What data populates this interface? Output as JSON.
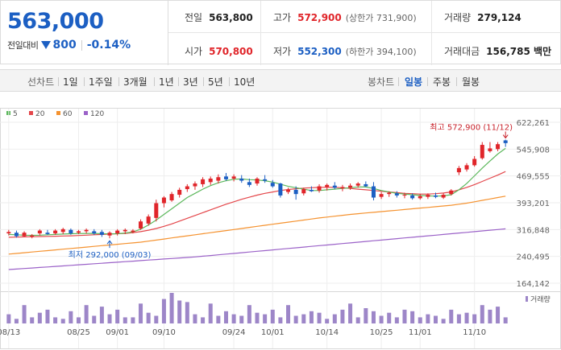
{
  "header": {
    "current_price": "563,000",
    "change_label": "전일대비",
    "change_value": "800",
    "change_direction": "down",
    "change_pct": "-0.14%",
    "quotes": {
      "prev_close": {
        "label": "전일",
        "value": "563,800"
      },
      "high": {
        "label": "고가",
        "value": "572,900",
        "sub": "(상한가 731,900)"
      },
      "volume": {
        "label": "거래량",
        "value": "279,124"
      },
      "open": {
        "label": "시가",
        "value": "570,800"
      },
      "low": {
        "label": "저가",
        "value": "552,300",
        "sub": "(하한가 394,100)"
      },
      "amount": {
        "label": "거래대금",
        "value": "156,785 백만"
      }
    }
  },
  "toolbar": {
    "line_chart_label": "선차트",
    "periods": [
      "1일",
      "1주일",
      "3개월",
      "1년",
      "3년",
      "5년",
      "10년"
    ],
    "candle_chart_label": "봉차트",
    "candle_periods": [
      "일봉",
      "주봉",
      "월봉"
    ],
    "candle_active": "일봉"
  },
  "colors": {
    "up": "#e0252a",
    "down": "#1c5fc3",
    "ma5": "#5cb85c",
    "ma20": "#e4474b",
    "ma60": "#f5922f",
    "ma120": "#9b62c8",
    "volume": "#9d86c8"
  },
  "chart_data": {
    "type": "candlestick",
    "legend": [
      {
        "name": "5",
        "color": "#5cb85c"
      },
      {
        "name": "20",
        "color": "#e4474b"
      },
      {
        "name": "60",
        "color": "#f5922f"
      },
      {
        "name": "120",
        "color": "#9b62c8"
      }
    ],
    "y_ticks": [
      622261,
      545908,
      469555,
      393201,
      316848,
      240495,
      164142
    ],
    "ylim": [
      164142,
      622261
    ],
    "x_tick_labels": [
      "08/13",
      "08/25",
      "09/01",
      "09/10",
      "09/24",
      "10/01",
      "10/14",
      "10/25",
      "11/01",
      "11/10"
    ],
    "annotation_high": {
      "label": "최고 572,900 (11/12)",
      "value": 572900
    },
    "annotation_low": {
      "label": "최저 292,000 (09/03)",
      "value": 292000
    },
    "volume_label": "거래량",
    "candles": [
      {
        "o": 306000,
        "h": 316000,
        "l": 300000,
        "c": 310000
      },
      {
        "o": 308000,
        "h": 314000,
        "l": 294000,
        "c": 298000
      },
      {
        "o": 298000,
        "h": 312000,
        "l": 296000,
        "c": 308000
      },
      {
        "o": 296000,
        "h": 304000,
        "l": 292000,
        "c": 300000
      },
      {
        "o": 306000,
        "h": 318000,
        "l": 300000,
        "c": 314000
      },
      {
        "o": 308000,
        "h": 316000,
        "l": 302000,
        "c": 304000
      },
      {
        "o": 306000,
        "h": 318000,
        "l": 302000,
        "c": 314000
      },
      {
        "o": 310000,
        "h": 322000,
        "l": 304000,
        "c": 318000
      },
      {
        "o": 316000,
        "h": 320000,
        "l": 302000,
        "c": 306000
      },
      {
        "o": 308000,
        "h": 316000,
        "l": 304000,
        "c": 312000
      },
      {
        "o": 312000,
        "h": 320000,
        "l": 306000,
        "c": 316000
      },
      {
        "o": 312000,
        "h": 318000,
        "l": 302000,
        "c": 306000
      },
      {
        "o": 310000,
        "h": 316000,
        "l": 296000,
        "c": 302000
      },
      {
        "o": 300000,
        "h": 312000,
        "l": 292000,
        "c": 308000
      },
      {
        "o": 306000,
        "h": 318000,
        "l": 300000,
        "c": 314000
      },
      {
        "o": 312000,
        "h": 320000,
        "l": 304000,
        "c": 316000
      },
      {
        "o": 310000,
        "h": 318000,
        "l": 306000,
        "c": 314000
      },
      {
        "o": 320000,
        "h": 346000,
        "l": 316000,
        "c": 340000
      },
      {
        "o": 334000,
        "h": 360000,
        "l": 328000,
        "c": 354000
      },
      {
        "o": 350000,
        "h": 402000,
        "l": 340000,
        "c": 392000
      },
      {
        "o": 392000,
        "h": 412000,
        "l": 380000,
        "c": 408000
      },
      {
        "o": 400000,
        "h": 424000,
        "l": 396000,
        "c": 418000
      },
      {
        "o": 416000,
        "h": 436000,
        "l": 408000,
        "c": 430000
      },
      {
        "o": 432000,
        "h": 446000,
        "l": 424000,
        "c": 440000
      },
      {
        "o": 440000,
        "h": 454000,
        "l": 430000,
        "c": 448000
      },
      {
        "o": 446000,
        "h": 466000,
        "l": 438000,
        "c": 460000
      },
      {
        "o": 452000,
        "h": 468000,
        "l": 444000,
        "c": 462000
      },
      {
        "o": 456000,
        "h": 474000,
        "l": 448000,
        "c": 466000
      },
      {
        "o": 468000,
        "h": 478000,
        "l": 456000,
        "c": 460000
      },
      {
        "o": 462000,
        "h": 474000,
        "l": 454000,
        "c": 468000
      },
      {
        "o": 462000,
        "h": 472000,
        "l": 450000,
        "c": 456000
      },
      {
        "o": 452000,
        "h": 462000,
        "l": 438000,
        "c": 444000
      },
      {
        "o": 448000,
        "h": 466000,
        "l": 442000,
        "c": 462000
      },
      {
        "o": 460000,
        "h": 472000,
        "l": 450000,
        "c": 456000
      },
      {
        "o": 450000,
        "h": 458000,
        "l": 436000,
        "c": 440000
      },
      {
        "o": 448000,
        "h": 450000,
        "l": 408000,
        "c": 414000
      },
      {
        "o": 424000,
        "h": 436000,
        "l": 418000,
        "c": 430000
      },
      {
        "o": 430000,
        "h": 440000,
        "l": 402000,
        "c": 418000
      },
      {
        "o": 420000,
        "h": 436000,
        "l": 414000,
        "c": 432000
      },
      {
        "o": 430000,
        "h": 440000,
        "l": 424000,
        "c": 426000
      },
      {
        "o": 428000,
        "h": 446000,
        "l": 422000,
        "c": 440000
      },
      {
        "o": 438000,
        "h": 448000,
        "l": 428000,
        "c": 444000
      },
      {
        "o": 442000,
        "h": 452000,
        "l": 432000,
        "c": 436000
      },
      {
        "o": 434000,
        "h": 444000,
        "l": 426000,
        "c": 438000
      },
      {
        "o": 436000,
        "h": 448000,
        "l": 430000,
        "c": 442000
      },
      {
        "o": 442000,
        "h": 452000,
        "l": 436000,
        "c": 448000
      },
      {
        "o": 446000,
        "h": 454000,
        "l": 438000,
        "c": 440000
      },
      {
        "o": 440000,
        "h": 452000,
        "l": 400000,
        "c": 408000
      },
      {
        "o": 410000,
        "h": 424000,
        "l": 404000,
        "c": 418000
      },
      {
        "o": 418000,
        "h": 426000,
        "l": 410000,
        "c": 422000
      },
      {
        "o": 420000,
        "h": 426000,
        "l": 408000,
        "c": 414000
      },
      {
        "o": 414000,
        "h": 422000,
        "l": 406000,
        "c": 416000
      },
      {
        "o": 414000,
        "h": 420000,
        "l": 402000,
        "c": 406000
      },
      {
        "o": 406000,
        "h": 418000,
        "l": 402000,
        "c": 412000
      },
      {
        "o": 410000,
        "h": 420000,
        "l": 404000,
        "c": 416000
      },
      {
        "o": 414000,
        "h": 422000,
        "l": 406000,
        "c": 410000
      },
      {
        "o": 408000,
        "h": 420000,
        "l": 404000,
        "c": 416000
      },
      {
        "o": 418000,
        "h": 432000,
        "l": 414000,
        "c": 428000
      },
      {
        "o": 480000,
        "h": 498000,
        "l": 472000,
        "c": 492000
      },
      {
        "o": 488000,
        "h": 506000,
        "l": 482000,
        "c": 500000
      },
      {
        "o": 500000,
        "h": 526000,
        "l": 496000,
        "c": 518000
      },
      {
        "o": 520000,
        "h": 566000,
        "l": 516000,
        "c": 558000
      },
      {
        "o": 540000,
        "h": 566000,
        "l": 536000,
        "c": 548000
      },
      {
        "o": 546000,
        "h": 566000,
        "l": 540000,
        "c": 560000
      },
      {
        "o": 570800,
        "h": 572900,
        "l": 552300,
        "c": 563000
      }
    ],
    "volumes": [
      30,
      15,
      60,
      20,
      35,
      45,
      20,
      15,
      40,
      20,
      60,
      25,
      55,
      30,
      45,
      20,
      20,
      65,
      35,
      25,
      80,
      100,
      75,
      70,
      30,
      20,
      65,
      25,
      40,
      30,
      25,
      60,
      35,
      30,
      45,
      20,
      60,
      25,
      30,
      40,
      35,
      15,
      30,
      45,
      65,
      20,
      50,
      40,
      25,
      35,
      20,
      45,
      40,
      20,
      30,
      25,
      15,
      45,
      30,
      35,
      30,
      60,
      45,
      55,
      20
    ],
    "ma5": [
      303000,
      302000,
      301000,
      300500,
      301000,
      302000,
      303000,
      304000,
      305000,
      305500,
      306000,
      306000,
      305000,
      304500,
      305000,
      307000,
      310000,
      318000,
      330000,
      344000,
      360000,
      376000,
      392000,
      408000,
      420000,
      432000,
      442000,
      450000,
      456000,
      460000,
      461000,
      459000,
      458000,
      456000,
      452000,
      446000,
      440000,
      436000,
      432000,
      428000,
      428000,
      430000,
      432000,
      434000,
      436000,
      438000,
      438000,
      434000,
      428000,
      424000,
      420000,
      418000,
      416000,
      414000,
      413000,
      412000,
      413000,
      416000,
      430000,
      448000,
      470000,
      492000,
      512000,
      532000,
      548000
    ],
    "ma20": [
      295000,
      295500,
      296000,
      296500,
      297000,
      297500,
      298000,
      298500,
      299000,
      300000,
      301000,
      302000,
      303000,
      304000,
      305000,
      306000,
      308000,
      311000,
      315000,
      320000,
      326000,
      333000,
      341000,
      349000,
      357000,
      365000,
      373000,
      381000,
      389000,
      396000,
      403000,
      409000,
      415000,
      420000,
      424000,
      428000,
      431000,
      433000,
      435000,
      436000,
      437000,
      437500,
      437000,
      436000,
      434000,
      432000,
      430000,
      428000,
      426000,
      424000,
      422000,
      420000,
      419000,
      418000,
      418000,
      419000,
      421000,
      424000,
      430000,
      437000,
      445000,
      454000,
      463000,
      472000,
      482000
    ],
    "ma60": [
      247000,
      249000,
      251000,
      253000,
      255000,
      257000,
      259000,
      261000,
      263000,
      265000,
      267000,
      269000,
      271000,
      273000,
      275000,
      277000,
      279000,
      281000,
      284000,
      287000,
      290000,
      293000,
      296000,
      299000,
      302000,
      305000,
      308000,
      311000,
      314000,
      317000,
      320000,
      323000,
      326000,
      329000,
      332000,
      335000,
      338000,
      341000,
      344000,
      347000,
      350000,
      352500,
      355000,
      357500,
      360000,
      362000,
      364000,
      366000,
      368000,
      370000,
      372000,
      374000,
      376000,
      378000,
      380000,
      382000,
      384000,
      386000,
      389000,
      392000,
      396000,
      400000,
      404000,
      408000,
      412000
    ],
    "ma120": [
      203000,
      204500,
      206000,
      207500,
      209000,
      210500,
      212000,
      213500,
      215000,
      216500,
      218000,
      219500,
      221000,
      222500,
      224000,
      225500,
      227000,
      228500,
      230000,
      231500,
      233000,
      234500,
      236000,
      237500,
      239000,
      241000,
      243000,
      245000,
      247000,
      249000,
      251000,
      253000,
      255000,
      257000,
      259000,
      261000,
      263000,
      265000,
      267000,
      269000,
      271000,
      273000,
      275000,
      277000,
      279000,
      281000,
      283000,
      285000,
      287000,
      289000,
      291000,
      293000,
      295000,
      297000,
      299000,
      301000,
      303000,
      305000,
      307000,
      309000,
      311000,
      313000,
      315000,
      317000,
      319000
    ]
  }
}
